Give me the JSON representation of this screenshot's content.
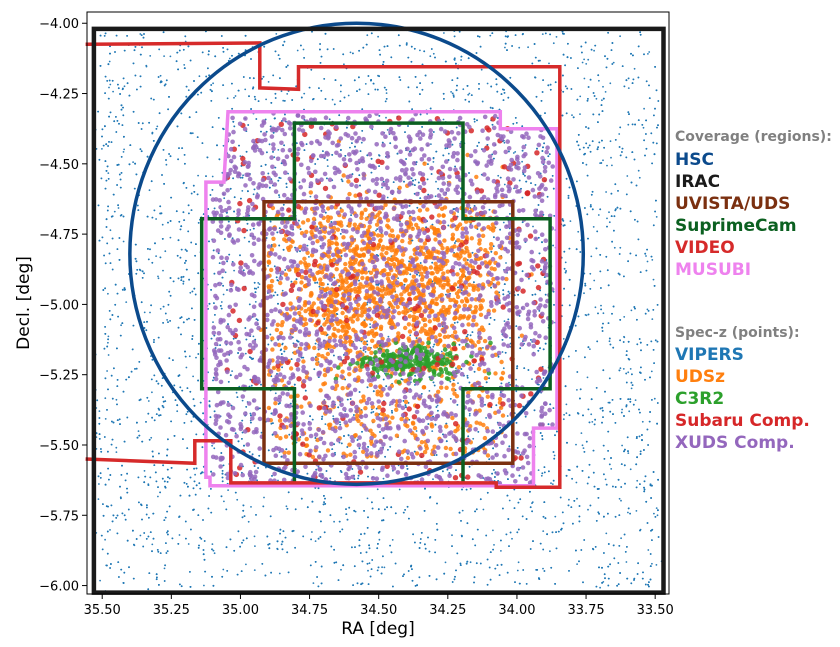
{
  "chart_data": {
    "type": "scatter",
    "title": "",
    "xlabel": "RA [deg]",
    "ylabel": "Decl. [deg]",
    "xlim": [
      35.555,
      33.45
    ],
    "ylim": [
      -6.03,
      -3.96
    ],
    "x_ticks": [
      35.5,
      35.25,
      35.0,
      34.75,
      34.5,
      34.25,
      34.0,
      33.75,
      33.5
    ],
    "x_tick_labels": [
      "35.50",
      "35.25",
      "35.00",
      "34.75",
      "34.50",
      "34.25",
      "34.00",
      "33.75",
      "33.50"
    ],
    "y_ticks": [
      -4.0,
      -4.25,
      -4.5,
      -4.75,
      -5.0,
      -5.25,
      -5.5,
      -5.75,
      -6.0
    ],
    "y_tick_labels": [
      "−4.00",
      "−4.25",
      "−4.50",
      "−4.75",
      "−5.00",
      "−5.25",
      "−5.50",
      "−5.75",
      "−6.00"
    ],
    "grid": false,
    "legend": {
      "placement": "right",
      "regions_title": "Coverage (regions):",
      "points_title": "Spec-z (points):",
      "title_color": "#808080"
    },
    "regions": [
      {
        "name": "HSC",
        "color": "#0b4a8c",
        "shape": "circle",
        "center": [
          34.58,
          -4.82
        ],
        "radius_dec": 0.82
      },
      {
        "name": "IRAC",
        "color": "#1a1a1a",
        "shape": "polygon",
        "vertices": [
          [
            35.53,
            -4.02
          ],
          [
            33.47,
            -4.02
          ],
          [
            33.47,
            -6.025
          ],
          [
            35.53,
            -6.025
          ]
        ]
      },
      {
        "name": "UVISTA/UDS",
        "color": "#7b3010",
        "shape": "polygon",
        "vertices": [
          [
            34.915,
            -4.635
          ],
          [
            34.015,
            -4.635
          ],
          [
            34.015,
            -5.565
          ],
          [
            34.915,
            -5.565
          ]
        ]
      },
      {
        "name": "SuprimeCam",
        "color": "#0b6020",
        "shape": "polygon",
        "vertices": [
          [
            34.805,
            -4.355
          ],
          [
            34.195,
            -4.355
          ],
          [
            34.195,
            -4.695
          ],
          [
            33.88,
            -4.695
          ],
          [
            33.88,
            -5.3
          ],
          [
            34.195,
            -5.3
          ],
          [
            34.195,
            -5.64
          ],
          [
            34.805,
            -5.64
          ],
          [
            34.805,
            -5.3
          ],
          [
            35.14,
            -5.3
          ],
          [
            35.14,
            -4.695
          ],
          [
            34.805,
            -4.695
          ]
        ]
      },
      {
        "name": "VIDEO",
        "color": "#d62a2a",
        "shape": "polygon",
        "vertices": [
          [
            35.56,
            -4.075
          ],
          [
            34.93,
            -4.07
          ],
          [
            34.93,
            -4.23
          ],
          [
            34.79,
            -4.235
          ],
          [
            34.79,
            -4.155
          ],
          [
            33.845,
            -4.155
          ],
          [
            33.845,
            -5.65
          ],
          [
            34.075,
            -5.65
          ],
          [
            34.075,
            -5.635
          ],
          [
            35.035,
            -5.635
          ],
          [
            35.035,
            -5.485
          ],
          [
            35.165,
            -5.485
          ],
          [
            35.165,
            -5.565
          ],
          [
            35.56,
            -5.55
          ]
        ]
      },
      {
        "name": "MUSUBI",
        "color": "#ee82ee",
        "shape": "polygon",
        "vertices": [
          [
            35.045,
            -4.315
          ],
          [
            34.06,
            -4.315
          ],
          [
            34.06,
            -4.375
          ],
          [
            33.855,
            -4.375
          ],
          [
            33.855,
            -5.44
          ],
          [
            33.94,
            -5.44
          ],
          [
            33.94,
            -5.645
          ],
          [
            35.11,
            -5.645
          ],
          [
            35.11,
            -5.615
          ],
          [
            35.125,
            -5.615
          ],
          [
            35.125,
            -4.565
          ],
          [
            35.06,
            -4.565
          ]
        ]
      }
    ],
    "point_sets": [
      {
        "name": "VIPERS",
        "color": "#1f77b4",
        "size": 0.9,
        "count": 6500,
        "distribution": "band-field",
        "ra_range": [
          35.53,
          33.47
        ],
        "dec_range": [
          -6.025,
          -4.02
        ]
      },
      {
        "name": "UDSz",
        "color": "#ff7f0e",
        "size": 2.2,
        "count": 1500,
        "distribution": "uvista-core",
        "ra_range": [
          34.9,
          34.05
        ],
        "dec_range": [
          -5.55,
          -4.65
        ]
      },
      {
        "name": "C3R2",
        "color": "#2ca02c",
        "size": 2.3,
        "count": 260,
        "distribution": "cluster",
        "ra_range": [
          34.6,
          34.2
        ],
        "dec_range": [
          -5.27,
          -5.1
        ]
      },
      {
        "name": "Subaru Comp.",
        "color": "#d62728",
        "size": 2.7,
        "count": 230,
        "distribution": "musubi-area",
        "ra_range": [
          35.05,
          33.9
        ],
        "dec_range": [
          -5.62,
          -4.32
        ]
      },
      {
        "name": "XUDS Comp.",
        "color": "#9467bd",
        "size": 2.3,
        "count": 1800,
        "distribution": "broad-core",
        "ra_range": [
          35.1,
          33.87
        ],
        "dec_range": [
          -5.64,
          -4.32
        ]
      }
    ]
  }
}
